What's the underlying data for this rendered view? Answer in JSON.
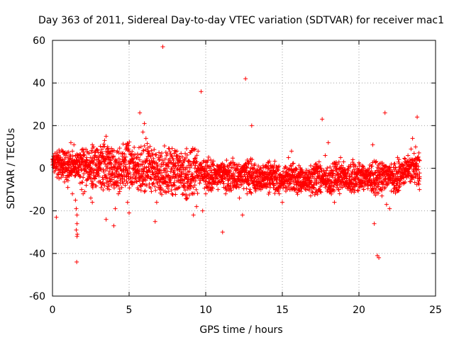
{
  "chart_data": {
    "type": "scatter",
    "title": "Day 363 of 2011, Sidereal Day-to-day VTEC variation (SDTVAR) for receiver mac1",
    "xlabel": "GPS time / hours",
    "ylabel": "SDTVAR / TECUs",
    "xlim": [
      0,
      25
    ],
    "ylim": [
      -60,
      60
    ],
    "xticks": [
      0,
      5,
      10,
      15,
      20,
      25
    ],
    "yticks": [
      -60,
      -40,
      -20,
      0,
      20,
      40,
      60
    ],
    "grid": true,
    "marker": "+",
    "color": "#ff0000",
    "series": [
      {
        "name": "SDTVAR",
        "points": [
          [
            0.1,
            2
          ],
          [
            0.2,
            -1
          ],
          [
            0.3,
            3
          ],
          [
            0.4,
            -3
          ],
          [
            0.5,
            4
          ],
          [
            0.6,
            1
          ],
          [
            0.7,
            -2
          ],
          [
            0.8,
            2
          ],
          [
            0.9,
            0
          ],
          [
            1.0,
            3
          ],
          [
            1.1,
            -1
          ],
          [
            1.2,
            2
          ],
          [
            1.3,
            8
          ],
          [
            1.4,
            11
          ],
          [
            1.5,
            6
          ],
          [
            1.6,
            3
          ],
          [
            0.25,
            -23
          ],
          [
            0.5,
            -2
          ],
          [
            1.0,
            -9
          ],
          [
            1.3,
            -12
          ],
          [
            1.2,
            12
          ],
          [
            1.5,
            -15
          ],
          [
            1.55,
            -19
          ],
          [
            1.6,
            -22
          ],
          [
            1.6,
            -26
          ],
          [
            1.55,
            -29
          ],
          [
            1.62,
            -31
          ],
          [
            1.6,
            -32
          ],
          [
            1.58,
            -44
          ],
          [
            1.7,
            -3
          ],
          [
            1.8,
            -7
          ],
          [
            1.9,
            -10
          ],
          [
            2.0,
            -12
          ],
          [
            2.1,
            -11
          ],
          [
            2.2,
            -8
          ],
          [
            2.3,
            -5
          ],
          [
            2.4,
            -3
          ],
          [
            2.5,
            -14
          ],
          [
            2.6,
            -16
          ],
          [
            2.2,
            4
          ],
          [
            2.4,
            7
          ],
          [
            2.6,
            11
          ],
          [
            2.8,
            6
          ],
          [
            3.0,
            3
          ],
          [
            3.1,
            2
          ],
          [
            3.2,
            5
          ],
          [
            3.3,
            10
          ],
          [
            3.4,
            13
          ],
          [
            3.5,
            15
          ],
          [
            3.6,
            10
          ],
          [
            3.7,
            5
          ],
          [
            3.8,
            2
          ],
          [
            3.6,
            -6
          ],
          [
            3.7,
            -10
          ],
          [
            3.5,
            -24
          ],
          [
            4.0,
            -27
          ],
          [
            4.1,
            -19
          ],
          [
            4.3,
            -12
          ],
          [
            4.2,
            -8
          ],
          [
            4.4,
            3
          ],
          [
            4.6,
            7
          ],
          [
            4.8,
            11
          ],
          [
            5.0,
            8
          ],
          [
            5.2,
            4
          ],
          [
            5.0,
            -21
          ],
          [
            4.9,
            -16
          ],
          [
            5.4,
            1
          ],
          [
            5.6,
            2
          ],
          [
            5.7,
            26
          ],
          [
            5.9,
            17
          ],
          [
            6.0,
            21
          ],
          [
            6.1,
            14
          ],
          [
            6.2,
            8
          ],
          [
            6.3,
            2
          ],
          [
            6.4,
            6
          ],
          [
            6.5,
            -3
          ],
          [
            6.6,
            -7
          ],
          [
            6.7,
            -25
          ],
          [
            6.8,
            -16
          ],
          [
            6.9,
            -9
          ],
          [
            7.0,
            4
          ],
          [
            7.1,
            2
          ],
          [
            7.2,
            57
          ],
          [
            7.4,
            -4
          ],
          [
            7.6,
            -8
          ],
          [
            7.8,
            -12
          ],
          [
            8.0,
            -10
          ],
          [
            8.2,
            -6
          ],
          [
            8.4,
            -3
          ],
          [
            8.6,
            -9
          ],
          [
            8.8,
            -14
          ],
          [
            9.0,
            -7
          ],
          [
            9.2,
            -22
          ],
          [
            9.4,
            -18
          ],
          [
            9.3,
            9
          ],
          [
            9.5,
            8
          ],
          [
            9.7,
            36
          ],
          [
            9.8,
            -20
          ],
          [
            10.0,
            -12
          ],
          [
            10.2,
            -5
          ],
          [
            10.4,
            -2
          ],
          [
            10.6,
            -7
          ],
          [
            10.8,
            -10
          ],
          [
            11.0,
            -6
          ],
          [
            11.1,
            -30
          ],
          [
            11.3,
            -12
          ],
          [
            11.5,
            -8
          ],
          [
            11.8,
            -3
          ],
          [
            12.0,
            -9
          ],
          [
            12.2,
            -14
          ],
          [
            12.4,
            -22
          ],
          [
            12.6,
            42
          ],
          [
            12.7,
            -12
          ],
          [
            13.0,
            20
          ],
          [
            13.2,
            -8
          ],
          [
            13.4,
            -4
          ],
          [
            13.6,
            -10
          ],
          [
            13.8,
            -6
          ],
          [
            14.0,
            -3
          ],
          [
            14.2,
            -9
          ],
          [
            14.4,
            -7
          ],
          [
            14.6,
            -5
          ],
          [
            14.8,
            -12
          ],
          [
            15.0,
            -16
          ],
          [
            15.2,
            -9
          ],
          [
            15.4,
            5
          ],
          [
            15.6,
            8
          ],
          [
            15.8,
            -4
          ],
          [
            16.0,
            -7
          ],
          [
            16.2,
            -3
          ],
          [
            16.4,
            -8
          ],
          [
            16.6,
            -5
          ],
          [
            16.8,
            -9
          ],
          [
            17.0,
            -4
          ],
          [
            17.2,
            -6
          ],
          [
            17.4,
            3
          ],
          [
            17.6,
            23
          ],
          [
            17.8,
            6
          ],
          [
            18.0,
            12
          ],
          [
            18.2,
            -2
          ],
          [
            18.4,
            -16
          ],
          [
            18.6,
            -6
          ],
          [
            18.8,
            5
          ],
          [
            19.0,
            3
          ],
          [
            19.2,
            -4
          ],
          [
            19.4,
            -7
          ],
          [
            19.6,
            4
          ],
          [
            19.8,
            -3
          ],
          [
            20.0,
            -6
          ],
          [
            20.3,
            -10
          ],
          [
            20.6,
            -8
          ],
          [
            20.9,
            11
          ],
          [
            21.0,
            -26
          ],
          [
            21.1,
            3
          ],
          [
            21.2,
            -41
          ],
          [
            21.3,
            -42
          ],
          [
            21.5,
            -13
          ],
          [
            21.7,
            26
          ],
          [
            21.8,
            -17
          ],
          [
            22.0,
            -19
          ],
          [
            22.2,
            -7
          ],
          [
            22.4,
            -4
          ],
          [
            22.6,
            -9
          ],
          [
            22.8,
            -2
          ],
          [
            23.0,
            3
          ],
          [
            23.2,
            6
          ],
          [
            23.4,
            9
          ],
          [
            23.5,
            14
          ],
          [
            23.6,
            7
          ],
          [
            23.7,
            10
          ],
          [
            23.8,
            24
          ],
          [
            23.9,
            -6
          ],
          [
            23.95,
            -10
          ]
        ]
      }
    ]
  }
}
